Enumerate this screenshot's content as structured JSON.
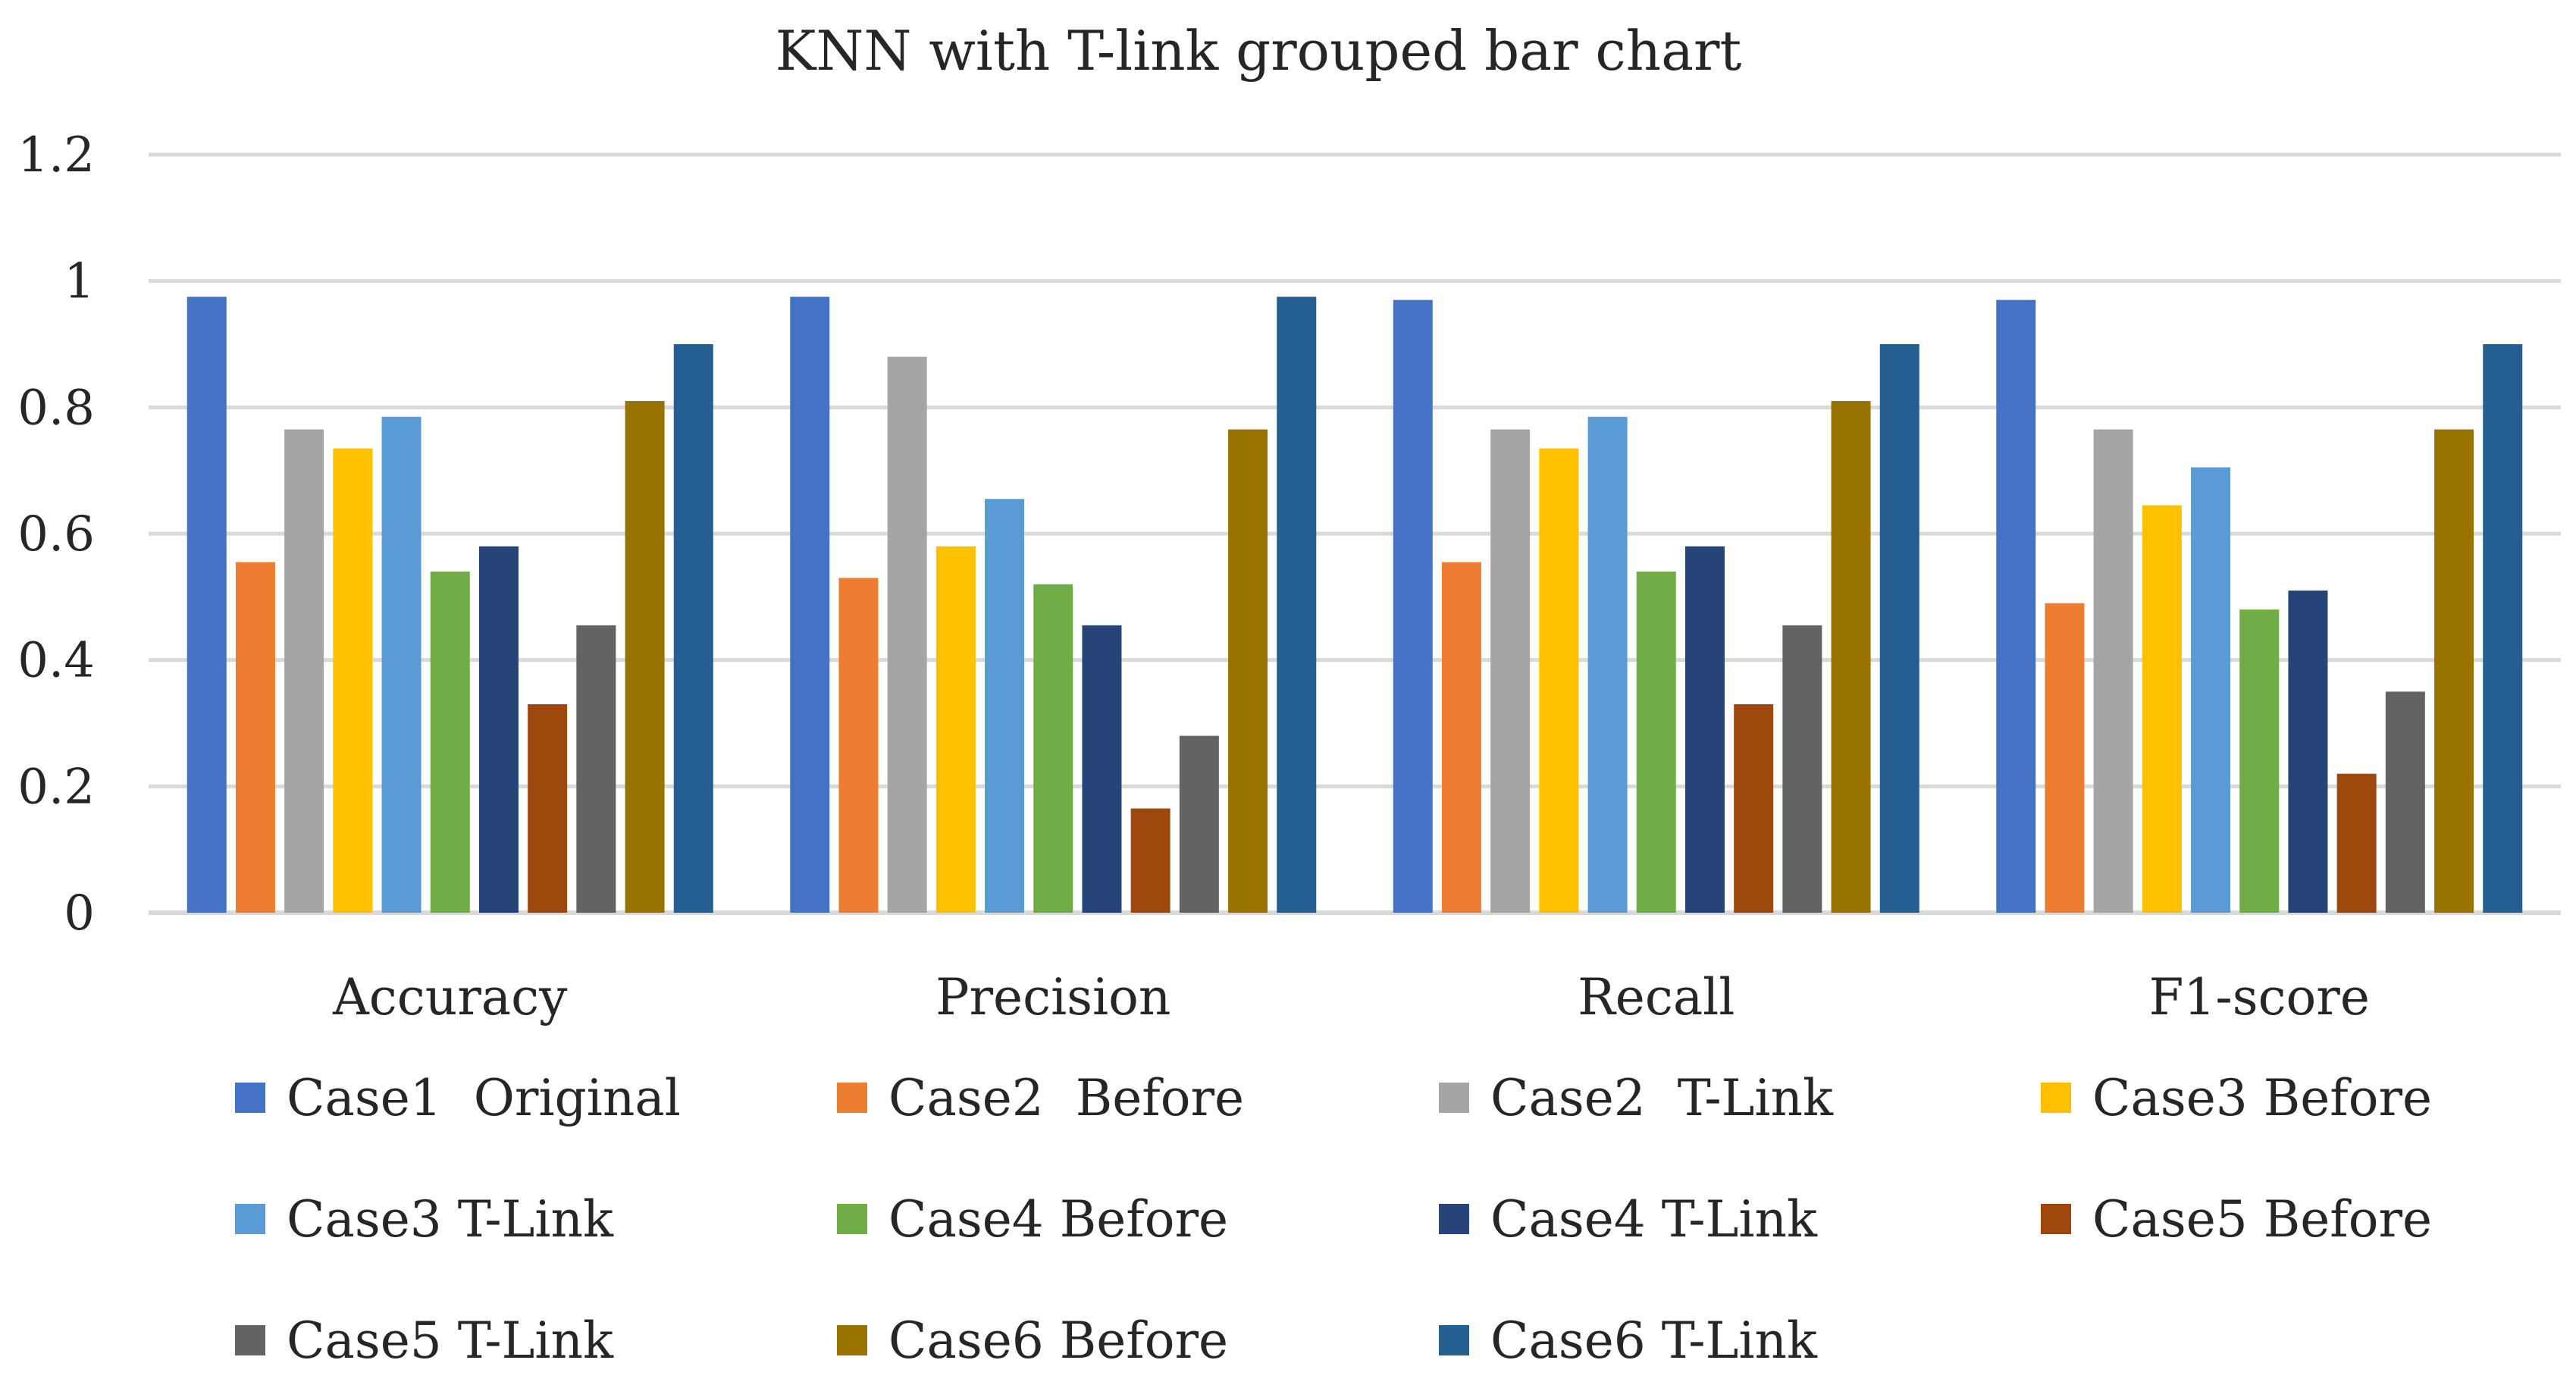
{
  "chart_data": {
    "type": "bar",
    "title": "KNN with T-link grouped bar chart",
    "xlabel": "",
    "ylabel": "",
    "ylim": [
      0,
      1.2
    ],
    "yticks": [
      0,
      0.2,
      0.4,
      0.6,
      0.8,
      1,
      1.2
    ],
    "ytick_labels": [
      "0",
      "0.2",
      "0.4",
      "0.6",
      "0.8",
      "1",
      "1.2"
    ],
    "grid": true,
    "legend_position": "bottom",
    "categories": [
      "Accuracy",
      "Precision",
      "Recall",
      "F1-score"
    ],
    "series": [
      {
        "name": "Case1  Original",
        "color": "#4472C4",
        "values": [
          0.975,
          0.975,
          0.97,
          0.97
        ]
      },
      {
        "name": "Case2  Before",
        "color": "#ED7D31",
        "values": [
          0.555,
          0.53,
          0.555,
          0.49
        ]
      },
      {
        "name": "Case2  T-Link",
        "color": "#A5A5A5",
        "values": [
          0.765,
          0.88,
          0.765,
          0.765
        ]
      },
      {
        "name": "Case3 Before",
        "color": "#FFC000",
        "values": [
          0.735,
          0.58,
          0.735,
          0.645
        ]
      },
      {
        "name": "Case3 T-Link",
        "color": "#5B9BD5",
        "values": [
          0.785,
          0.655,
          0.785,
          0.705
        ]
      },
      {
        "name": "Case4 Before",
        "color": "#70AD47",
        "values": [
          0.54,
          0.52,
          0.54,
          0.48
        ]
      },
      {
        "name": "Case4 T-Link",
        "color": "#264478",
        "values": [
          0.58,
          0.455,
          0.58,
          0.51
        ]
      },
      {
        "name": "Case5 Before",
        "color": "#9E480E",
        "values": [
          0.33,
          0.165,
          0.33,
          0.22
        ]
      },
      {
        "name": "Case5 T-Link",
        "color": "#636363",
        "values": [
          0.455,
          0.28,
          0.455,
          0.35
        ]
      },
      {
        "name": "Case6 Before",
        "color": "#997300",
        "values": [
          0.81,
          0.765,
          0.81,
          0.765
        ]
      },
      {
        "name": "Case6 T-Link",
        "color": "#255E91",
        "values": [
          0.9,
          0.975,
          0.9,
          0.9
        ]
      }
    ]
  }
}
